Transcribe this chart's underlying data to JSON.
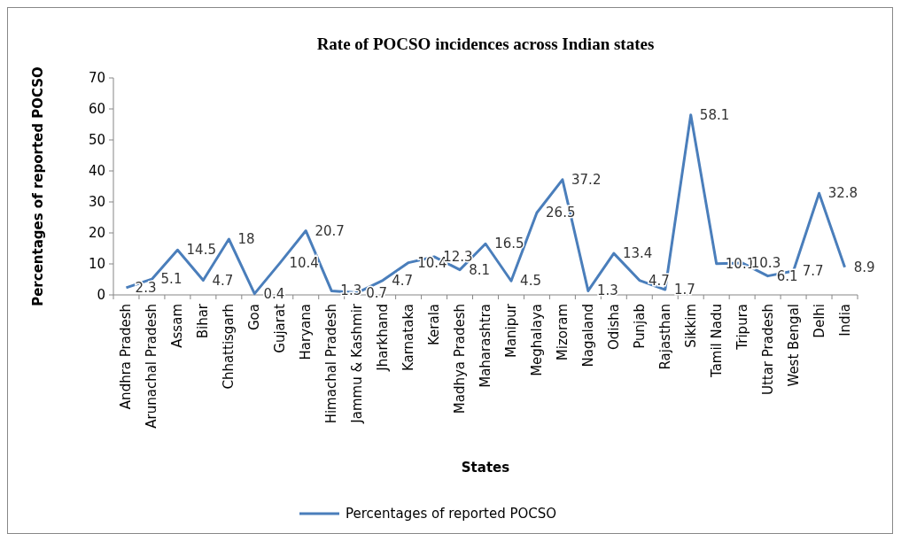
{
  "chart_data": {
    "type": "line",
    "title": "Rate of POCSO incidences across Indian states",
    "xlabel": "States",
    "ylabel": "Percentages of reported POCSO",
    "categories": [
      "Andhra Pradesh",
      "Arunachal Pradesh",
      "Assam",
      "Bihar",
      "Chhattisgarh",
      "Goa",
      "Gujarat",
      "Haryana",
      "Himachal Pradesh",
      "Jammu & Kashmir",
      "Jharkhand",
      "Karnataka",
      "Kerala",
      "Madhya Pradesh",
      "Maharashtra",
      "Manipur",
      "Meghalaya",
      "Mizoram",
      "Nagaland",
      "Odisha",
      "Punjab",
      "Rajasthan",
      "Sikkim",
      "Tamil Nadu",
      "Tripura",
      "Uttar Pradesh",
      "West Bengal",
      "Delhi",
      "India"
    ],
    "series": [
      {
        "name": "Percentages of reported POCSO",
        "color": "#4a7ebb",
        "values": [
          2.3,
          5.1,
          14.5,
          4.7,
          18,
          0.4,
          10.4,
          20.7,
          1.3,
          0.7,
          4.7,
          10.4,
          12.3,
          8.1,
          16.5,
          4.5,
          26.5,
          37.2,
          1.3,
          13.4,
          4.7,
          1.7,
          58.1,
          10.1,
          10.3,
          6.1,
          7.7,
          32.8,
          8.9
        ]
      }
    ],
    "ylim": [
      0,
      70
    ],
    "yticks": [
      0,
      10,
      20,
      30,
      40,
      50,
      60,
      70
    ],
    "data_labels": true,
    "legend": "bottom",
    "marker": "none",
    "line_style": "solid",
    "grid": false
  }
}
